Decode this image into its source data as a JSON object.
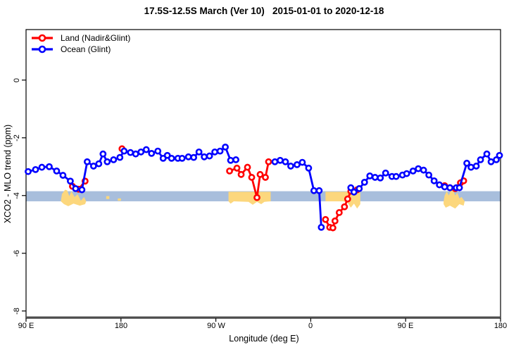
{
  "window": {
    "title": "17.5S-12.5S March (Ver 10)   2015-01-01 to 2020-12-18"
  },
  "chart_data": {
    "type": "line",
    "title": "17.5S-12.5S March (Ver 10)   2015-01-01 to 2020-12-18",
    "xlabel": "Longitude (deg E)",
    "ylabel": "XCO2 - MLO trend (ppm)",
    "xlim": [
      90,
      540
    ],
    "ylim": [
      -8.25,
      1.75
    ],
    "grid": false,
    "legend_position": "top-left-inside",
    "x_ticks": [
      {
        "value": 90,
        "label": "90 E"
      },
      {
        "value": 180,
        "label": "180"
      },
      {
        "value": 270,
        "label": "90 W"
      },
      {
        "value": 360,
        "label": "0"
      },
      {
        "value": 450,
        "label": "90 E"
      },
      {
        "value": 540,
        "label": "180"
      }
    ],
    "y_ticks": [
      {
        "value": 0,
        "label": "0"
      },
      {
        "value": -2,
        "label": "-2"
      },
      {
        "value": -4,
        "label": "-4"
      },
      {
        "value": -6,
        "label": "-6"
      },
      {
        "value": -8,
        "label": "-8"
      }
    ],
    "band": {
      "from": -3.85,
      "to": -4.2,
      "color": "#a8bedc"
    },
    "patches": {
      "color": "#fcd77d",
      "polygons": [
        [
          [
            123,
            -4.2
          ],
          [
            124,
            -3.95
          ],
          [
            127,
            -3.8
          ],
          [
            129,
            -3.82
          ],
          [
            131,
            -4.02
          ],
          [
            133,
            -3.85
          ],
          [
            136,
            -4.05
          ],
          [
            139,
            -3.95
          ],
          [
            142,
            -4.18
          ],
          [
            145,
            -4.05
          ],
          [
            147,
            -4.2
          ],
          [
            146,
            -4.3
          ],
          [
            141,
            -4.35
          ],
          [
            135,
            -4.28
          ],
          [
            130,
            -4.37
          ],
          [
            126,
            -4.3
          ]
        ],
        [
          [
            166,
            -4.02
          ],
          [
            169,
            -4.02
          ],
          [
            169,
            -4.12
          ],
          [
            166,
            -4.12
          ]
        ],
        [
          [
            177,
            -4.1
          ],
          [
            180,
            -4.1
          ],
          [
            180,
            -4.18
          ],
          [
            177,
            -4.18
          ]
        ],
        [
          [
            282,
            -3.87
          ],
          [
            322,
            -3.87
          ],
          [
            322,
            -4.2
          ],
          [
            316,
            -4.22
          ],
          [
            313,
            -4.3
          ],
          [
            309,
            -4.22
          ],
          [
            305,
            -4.32
          ],
          [
            301,
            -4.22
          ],
          [
            287,
            -4.2
          ],
          [
            284,
            -4.28
          ],
          [
            282,
            -4.2
          ]
        ],
        [
          [
            374,
            -3.87
          ],
          [
            407,
            -3.87
          ],
          [
            407,
            -4.3
          ],
          [
            404,
            -4.45
          ],
          [
            401,
            -4.28
          ],
          [
            398,
            -4.42
          ],
          [
            395,
            -4.25
          ],
          [
            391,
            -4.2
          ],
          [
            374,
            -4.2
          ]
        ],
        [
          [
            486,
            -4.2
          ],
          [
            487,
            -4.0
          ],
          [
            489,
            -3.85
          ],
          [
            491,
            -4.0
          ],
          [
            493,
            -3.8
          ],
          [
            495,
            -3.82
          ],
          [
            497,
            -4.0
          ],
          [
            499,
            -3.9
          ],
          [
            501,
            -4.1
          ],
          [
            503,
            -4.05
          ],
          [
            506,
            -4.2
          ],
          [
            505,
            -4.35
          ],
          [
            501,
            -4.3
          ],
          [
            497,
            -4.45
          ],
          [
            492,
            -4.35
          ],
          [
            488,
            -4.42
          ],
          [
            486,
            -4.3
          ]
        ]
      ]
    },
    "series": [
      {
        "name": "Land (Nadir&Glint)",
        "color": "#ff0000",
        "segments": [
          [
            [
              134,
              -3.68
            ],
            [
              140,
              -3.78
            ],
            [
              146,
              -3.5
            ]
          ],
          [
            [
              181,
              -2.38
            ]
          ],
          [
            [
              283,
              -3.15
            ],
            [
              290,
              -3.05
            ],
            [
              294,
              -3.27
            ],
            [
              300,
              -3.02
            ],
            [
              304,
              -3.37
            ],
            [
              309,
              -4.07
            ],
            [
              312,
              -3.27
            ],
            [
              317,
              -3.37
            ],
            [
              320,
              -2.83
            ]
          ],
          [
            [
              374,
              -4.83
            ],
            [
              378,
              -5.1
            ],
            [
              381,
              -5.12
            ],
            [
              383,
              -4.88
            ],
            [
              387,
              -4.59
            ],
            [
              392,
              -4.39
            ],
            [
              395,
              -4.12
            ],
            [
              398,
              -3.85
            ],
            [
              404,
              -3.8
            ]
          ],
          [
            [
              487,
              -3.66
            ],
            [
              492,
              -3.73
            ],
            [
              497,
              -3.76
            ],
            [
              502,
              -3.56
            ],
            [
              505,
              -3.49
            ]
          ]
        ]
      },
      {
        "name": "Ocean (Glint)",
        "color": "#0000ff",
        "segments": [
          [
            [
              92,
              -3.17
            ],
            [
              99,
              -3.1
            ],
            [
              105,
              -3.02
            ],
            [
              112,
              -3.0
            ],
            [
              119,
              -3.15
            ],
            [
              125,
              -3.3
            ],
            [
              132,
              -3.5
            ],
            [
              137,
              -3.76
            ],
            [
              143,
              -3.8
            ],
            [
              148,
              -2.83
            ],
            [
              154,
              -2.98
            ],
            [
              159,
              -2.9
            ],
            [
              163,
              -2.56
            ],
            [
              167,
              -2.83
            ],
            [
              173,
              -2.76
            ],
            [
              179,
              -2.68
            ],
            [
              183,
              -2.46
            ],
            [
              189,
              -2.51
            ],
            [
              194,
              -2.56
            ],
            [
              199,
              -2.49
            ],
            [
              204,
              -2.41
            ],
            [
              209,
              -2.54
            ],
            [
              215,
              -2.46
            ],
            [
              220,
              -2.71
            ],
            [
              224,
              -2.61
            ],
            [
              228,
              -2.71
            ],
            [
              234,
              -2.71
            ],
            [
              238,
              -2.71
            ],
            [
              244,
              -2.66
            ],
            [
              249,
              -2.68
            ],
            [
              254,
              -2.49
            ],
            [
              259,
              -2.66
            ],
            [
              264,
              -2.63
            ],
            [
              269,
              -2.49
            ],
            [
              274,
              -2.46
            ],
            [
              279,
              -2.32
            ],
            [
              284,
              -2.78
            ],
            [
              289,
              -2.76
            ]
          ],
          [
            [
              326,
              -2.83
            ],
            [
              331,
              -2.78
            ],
            [
              336,
              -2.83
            ],
            [
              341,
              -2.98
            ],
            [
              347,
              -2.93
            ],
            [
              352,
              -2.85
            ],
            [
              358,
              -3.05
            ],
            [
              363,
              -3.83
            ],
            [
              368,
              -3.83
            ],
            [
              370,
              -5.1
            ]
          ],
          [
            [
              398,
              -3.73
            ],
            [
              401,
              -3.88
            ],
            [
              406,
              -3.76
            ],
            [
              411,
              -3.54
            ],
            [
              416,
              -3.32
            ],
            [
              421,
              -3.37
            ],
            [
              426,
              -3.39
            ],
            [
              431,
              -3.22
            ],
            [
              437,
              -3.34
            ],
            [
              441,
              -3.34
            ],
            [
              447,
              -3.29
            ],
            [
              451,
              -3.24
            ],
            [
              457,
              -3.15
            ],
            [
              462,
              -3.07
            ],
            [
              467,
              -3.12
            ],
            [
              472,
              -3.29
            ],
            [
              477,
              -3.49
            ],
            [
              482,
              -3.63
            ],
            [
              487,
              -3.7
            ],
            [
              492,
              -3.73
            ],
            [
              498,
              -3.73
            ],
            [
              501,
              -3.73
            ],
            [
              508,
              -2.88
            ],
            [
              512,
              -3.02
            ],
            [
              517,
              -2.98
            ],
            [
              521,
              -2.76
            ],
            [
              527,
              -2.56
            ],
            [
              531,
              -2.83
            ],
            [
              536,
              -2.76
            ],
            [
              539,
              -2.61
            ]
          ]
        ]
      }
    ],
    "legend": {
      "items": [
        {
          "label": "Land (Nadir&Glint)",
          "color": "#ff0000"
        },
        {
          "label": "Ocean (Glint)",
          "color": "#0000ff"
        }
      ]
    },
    "axis_colors": {
      "box": "#000000",
      "baseline": "#4d4d4d"
    }
  }
}
